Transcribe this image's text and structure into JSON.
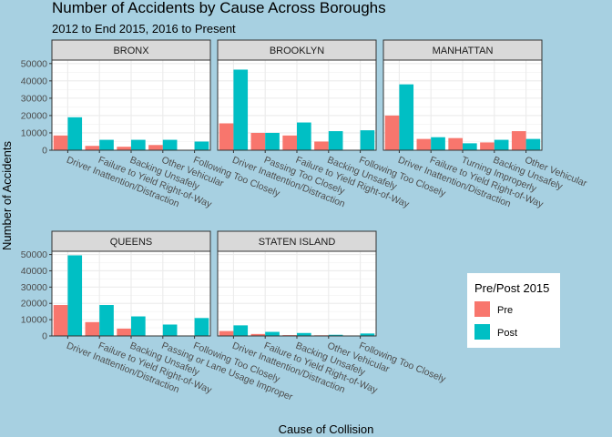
{
  "chart_data": {
    "type": "bar",
    "title": "Number of Accidents by Cause Across Boroughs",
    "subtitle": "2012 to End 2015, 2016 to Present",
    "xlabel": "Cause of Collision",
    "ylabel": "Number of Accidents",
    "ylim": [
      0,
      52000
    ],
    "yticks": [
      0,
      10000,
      20000,
      30000,
      40000,
      50000
    ],
    "grid": true,
    "legend": {
      "title": "Pre/Post 2015",
      "placement": "bottom-right",
      "entries": [
        {
          "name": "Pre",
          "color": "#f8766d"
        },
        {
          "name": "Post",
          "color": "#00bfc4"
        }
      ]
    },
    "panels": [
      {
        "name": "BRONX",
        "categories": [
          "Driver Inattention/Distraction",
          "Failure to Yield Right-of-Way",
          "Backing Unsafely",
          "Other Vehicular",
          "Following Too Closely"
        ],
        "series": [
          {
            "name": "Pre",
            "values": [
              8500,
              2500,
              2000,
              3000,
              0
            ]
          },
          {
            "name": "Post",
            "values": [
              19000,
              6000,
              6000,
              6000,
              5000
            ]
          }
        ]
      },
      {
        "name": "BROOKLYN",
        "categories": [
          "Driver Inattention/Distraction",
          "Passing Too Closely",
          "Failure to Yield Right-of-Way",
          "Backing Unsafely",
          "Following Too Closely"
        ],
        "series": [
          {
            "name": "Pre",
            "values": [
              15500,
              10000,
              8500,
              5000,
              0
            ]
          },
          {
            "name": "Post",
            "values": [
              46500,
              10000,
              16000,
              11000,
              11500
            ]
          }
        ]
      },
      {
        "name": "MANHATTAN",
        "categories": [
          "Driver Inattention/Distraction",
          "Failure to Yield Right-of-Way",
          "Turning Improperly",
          "Backing Unsafely",
          "Other Vehicular"
        ],
        "series": [
          {
            "name": "Pre",
            "values": [
              20000,
              6500,
              7000,
              4500,
              11000
            ]
          },
          {
            "name": "Post",
            "values": [
              38000,
              7500,
              4000,
              6000,
              6500
            ]
          }
        ]
      },
      {
        "name": "QUEENS",
        "categories": [
          "Driver Inattention/Distraction",
          "Failure to Yield Right-of-Way",
          "Backing Unsafely",
          "Passing or Lane Usage Improper",
          "Following Too Closely"
        ],
        "series": [
          {
            "name": "Pre",
            "values": [
              19000,
              8500,
              4500,
              0,
              0
            ]
          },
          {
            "name": "Post",
            "values": [
              49500,
              19000,
              12000,
              7000,
              11000
            ]
          }
        ]
      },
      {
        "name": "STATEN ISLAND",
        "categories": [
          "Driver Inattention/Distraction",
          "Failure to Yield Right-of-Way",
          "Backing Unsafely",
          "Other Vehicular",
          "Following Too Closely"
        ],
        "series": [
          {
            "name": "Pre",
            "values": [
              3000,
              1200,
              500,
              400,
              0
            ]
          },
          {
            "name": "Post",
            "values": [
              6500,
              2500,
              1800,
              700,
              1500
            ]
          }
        ]
      }
    ]
  }
}
